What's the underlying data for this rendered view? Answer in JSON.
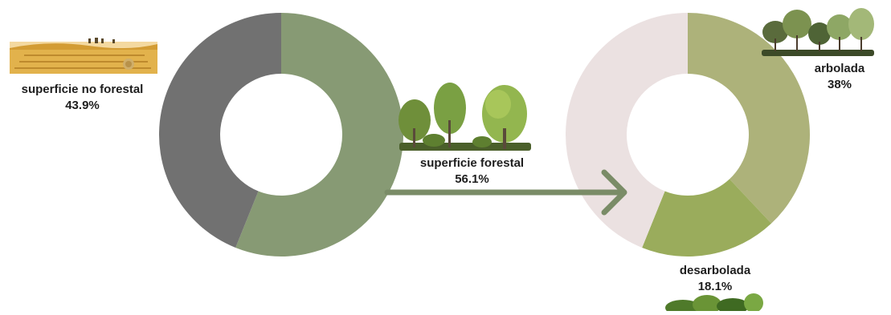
{
  "chart_data": [
    {
      "type": "pie",
      "variant": "donut",
      "slices": [
        {
          "label": "superficie forestal",
          "value": 56.1,
          "display": "56.1%",
          "color": "#879a74"
        },
        {
          "label": "superficie no forestal",
          "value": 43.9,
          "display": "43.9%",
          "color": "#717171"
        }
      ]
    },
    {
      "type": "pie",
      "variant": "donut",
      "slices": [
        {
          "label": "arbolada",
          "value": 38,
          "display": "38%",
          "color": "#adb27a"
        },
        {
          "label": "desarbolada",
          "value": 18.1,
          "display": "18.1%",
          "color": "#9aac5c"
        },
        {
          "label": "",
          "value": 43.9,
          "display": "",
          "color": "#ebe1e1"
        }
      ]
    }
  ],
  "arrow": {
    "color": "#7a8c67"
  },
  "illustrations": [
    {
      "name": "wheat-field-illustration"
    },
    {
      "name": "forest-trees-illustration"
    },
    {
      "name": "tall-trees-illustration"
    },
    {
      "name": "bushes-illustration"
    }
  ]
}
